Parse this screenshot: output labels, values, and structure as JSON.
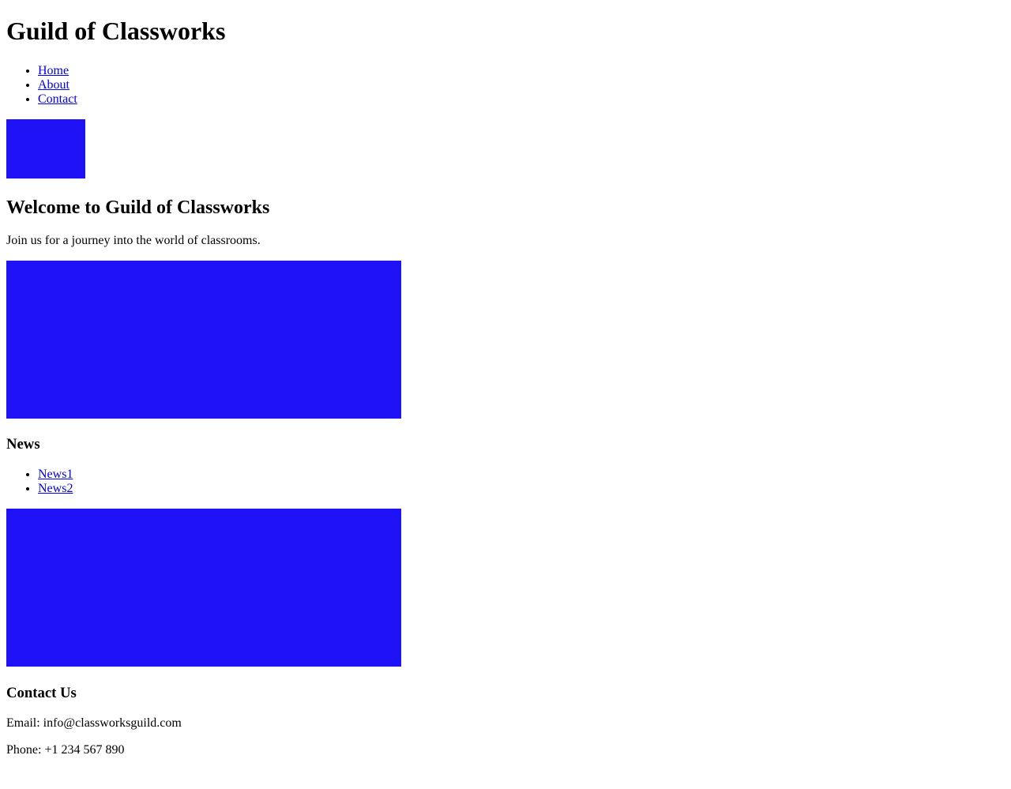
{
  "site": {
    "title": "Guild of Classworks"
  },
  "nav": {
    "items": [
      {
        "label": "Home"
      },
      {
        "label": "About"
      },
      {
        "label": "Contact"
      }
    ]
  },
  "hero": {
    "heading": "Welcome to Guild of Classworks",
    "text": "Join us for a journey into the world of classrooms."
  },
  "news": {
    "heading": "News",
    "items": [
      {
        "label": "News1"
      },
      {
        "label": "News2"
      }
    ]
  },
  "contact": {
    "heading": "Contact Us",
    "email": "Email: info@classworksguild.com",
    "phone": "Phone: +1 234 567 890"
  },
  "colors": {
    "placeholder_block": "#1f12f7",
    "link": "#0000ee",
    "text": "#000000",
    "background": "#ffffff"
  }
}
